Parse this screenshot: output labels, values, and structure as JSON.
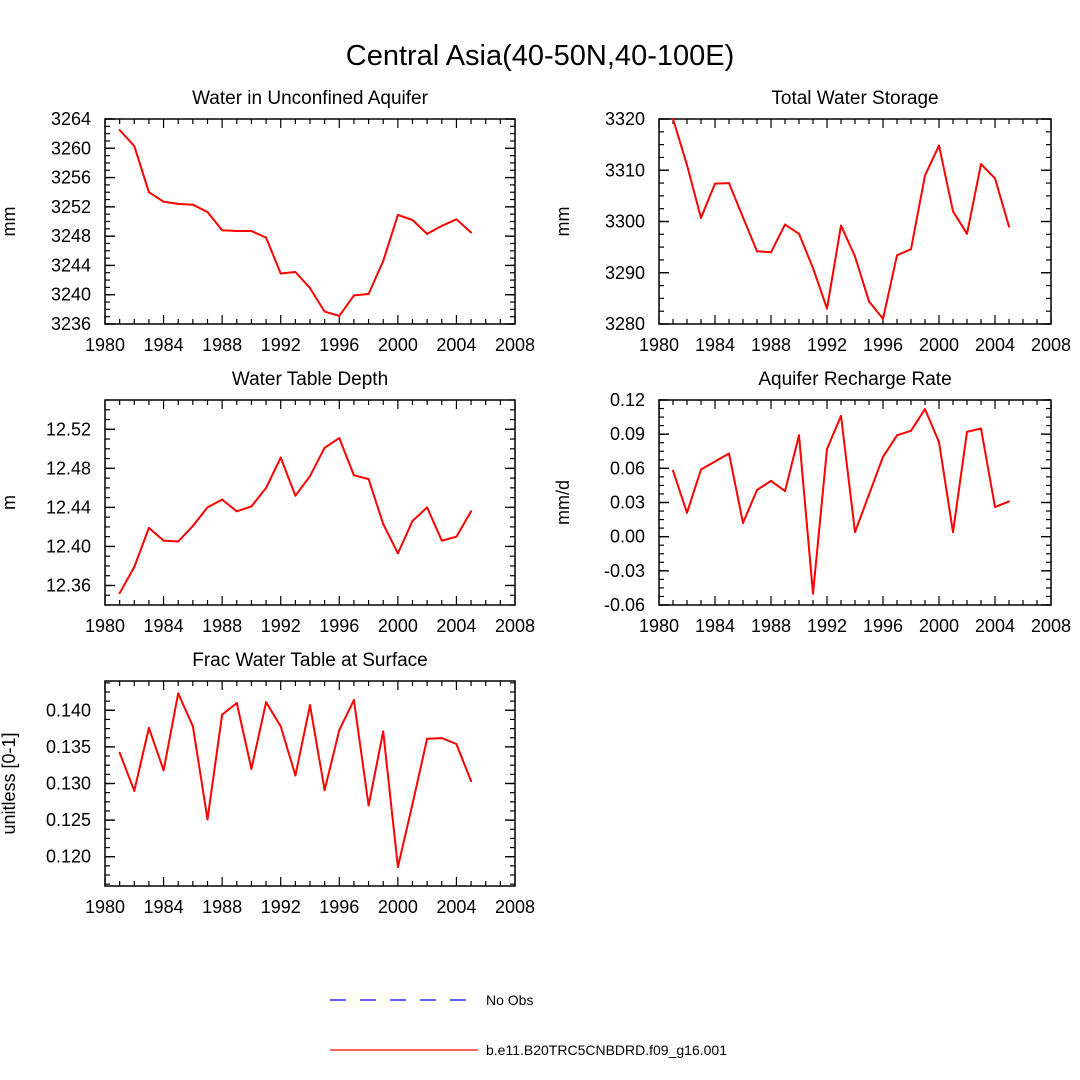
{
  "figure": {
    "title": "Central Asia(40-50N,40-100E)"
  },
  "colors": {
    "series": "#ff0000",
    "no_obs": "#0000ff",
    "axis": "#000000"
  },
  "chart_data": [
    {
      "type": "line",
      "title": "Water in Unconfined Aquifer",
      "ylabel": "mm",
      "xlabel": "",
      "xlim": [
        1980,
        2008
      ],
      "xticks": [
        1980,
        1984,
        1988,
        1992,
        1996,
        2000,
        2004,
        2008
      ],
      "ylim": [
        3236,
        3264
      ],
      "yticks": [
        3236,
        3240,
        3244,
        3248,
        3252,
        3256,
        3260,
        3264
      ],
      "ytick_labels": [
        "3236",
        "3240",
        "3244",
        "3248",
        "3252",
        "3256",
        "3260",
        "3264"
      ],
      "x": [
        1981,
        1982,
        1983,
        1984,
        1985,
        1986,
        1987,
        1988,
        1989,
        1990,
        1991,
        1992,
        1993,
        1994,
        1995,
        1996,
        1997,
        1998,
        1999,
        2000,
        2001,
        2002,
        2003,
        2004,
        2005
      ],
      "series": [
        {
          "name": "b.e11.B20TRC5CNBDRD.f09_g16.001",
          "values": [
            3262.5,
            3260.3,
            3254.0,
            3252.7,
            3252.4,
            3252.3,
            3251.3,
            3248.8,
            3248.7,
            3248.7,
            3247.8,
            3242.9,
            3243.1,
            3240.9,
            3237.7,
            3237.1,
            3239.9,
            3240.1,
            3244.6,
            3250.9,
            3250.2,
            3248.3,
            3249.4,
            3250.3,
            3248.5
          ]
        }
      ]
    },
    {
      "type": "line",
      "title": "Total Water Storage",
      "ylabel": "mm",
      "xlabel": "",
      "xlim": [
        1980,
        2008
      ],
      "xticks": [
        1980,
        1984,
        1988,
        1992,
        1996,
        2000,
        2004,
        2008
      ],
      "ylim": [
        3280,
        3320
      ],
      "yticks": [
        3280,
        3290,
        3300,
        3310,
        3320
      ],
      "ytick_labels": [
        "3280",
        "3290",
        "3300",
        "3310",
        "3320"
      ],
      "x": [
        1981,
        1982,
        1983,
        1984,
        1985,
        1986,
        1987,
        1988,
        1989,
        1990,
        1991,
        1992,
        1993,
        1994,
        1995,
        1996,
        1997,
        1998,
        1999,
        2000,
        2001,
        2002,
        2003,
        2004,
        2005
      ],
      "series": [
        {
          "name": "b.e11.B20TRC5CNBDRD.f09_g16.001",
          "values": [
            3320.0,
            3311.0,
            3300.7,
            3307.4,
            3307.5,
            3300.8,
            3294.2,
            3294.0,
            3299.4,
            3297.6,
            3290.9,
            3283.0,
            3299.2,
            3293.2,
            3284.4,
            3281.0,
            3293.4,
            3294.6,
            3309.0,
            3314.8,
            3302.0,
            3297.6,
            3311.2,
            3308.4,
            3299.0
          ]
        }
      ]
    },
    {
      "type": "line",
      "title": "Water Table Depth",
      "ylabel": "m",
      "xlabel": "",
      "xlim": [
        1980,
        2008
      ],
      "xticks": [
        1980,
        1984,
        1988,
        1992,
        1996,
        2000,
        2004,
        2008
      ],
      "ylim": [
        12.34,
        12.55
      ],
      "yticks": [
        12.36,
        12.4,
        12.44,
        12.48,
        12.52
      ],
      "ytick_labels": [
        "12.36",
        "12.40",
        "12.44",
        "12.48",
        "12.52"
      ],
      "x": [
        1981,
        1982,
        1983,
        1984,
        1985,
        1986,
        1987,
        1988,
        1989,
        1990,
        1991,
        1992,
        1993,
        1994,
        1995,
        1996,
        1997,
        1998,
        1999,
        2000,
        2001,
        2002,
        2003,
        2004,
        2005
      ],
      "series": [
        {
          "name": "b.e11.B20TRC5CNBDRD.f09_g16.001",
          "values": [
            12.352,
            12.379,
            12.419,
            12.406,
            12.405,
            12.421,
            12.44,
            12.448,
            12.436,
            12.441,
            12.46,
            12.491,
            12.452,
            12.472,
            12.501,
            12.511,
            12.473,
            12.469,
            12.423,
            12.393,
            12.426,
            12.44,
            12.406,
            12.41,
            12.436
          ]
        }
      ]
    },
    {
      "type": "line",
      "title": "Aquifer Recharge Rate",
      "ylabel": "mm/d",
      "xlabel": "",
      "xlim": [
        1980,
        2008
      ],
      "xticks": [
        1980,
        1984,
        1988,
        1992,
        1996,
        2000,
        2004,
        2008
      ],
      "ylim": [
        -0.06,
        0.12
      ],
      "yticks": [
        -0.06,
        -0.03,
        0.0,
        0.03,
        0.06,
        0.09,
        0.12
      ],
      "ytick_labels": [
        "-0.06",
        "-0.03",
        "0.00",
        "0.03",
        "0.06",
        "0.09",
        "0.12"
      ],
      "x": [
        1981,
        1982,
        1983,
        1984,
        1985,
        1986,
        1987,
        1988,
        1989,
        1990,
        1991,
        1992,
        1993,
        1994,
        1995,
        1996,
        1997,
        1998,
        1999,
        2000,
        2001,
        2002,
        2003,
        2004,
        2005
      ],
      "series": [
        {
          "name": "b.e11.B20TRC5CNBDRD.f09_g16.001",
          "values": [
            0.058,
            0.021,
            0.059,
            0.066,
            0.073,
            0.012,
            0.041,
            0.049,
            0.04,
            0.089,
            -0.05,
            0.077,
            0.106,
            0.004,
            0.037,
            0.07,
            0.089,
            0.093,
            0.112,
            0.083,
            0.004,
            0.092,
            0.095,
            0.026,
            0.031
          ]
        }
      ]
    },
    {
      "type": "line",
      "title": "Frac Water Table at Surface",
      "ylabel": "unitless [0-1]",
      "xlabel": "",
      "xlim": [
        1980,
        2008
      ],
      "xticks": [
        1980,
        1984,
        1988,
        1992,
        1996,
        2000,
        2004,
        2008
      ],
      "ylim": [
        0.116,
        0.144
      ],
      "yticks": [
        0.12,
        0.125,
        0.13,
        0.135,
        0.14
      ],
      "ytick_labels": [
        "0.120",
        "0.125",
        "0.130",
        "0.135",
        "0.140"
      ],
      "x": [
        1981,
        1982,
        1983,
        1984,
        1985,
        1986,
        1987,
        1988,
        1989,
        1990,
        1991,
        1992,
        1993,
        1994,
        1995,
        1996,
        1997,
        1998,
        1999,
        2000,
        2001,
        2002,
        2003,
        2004,
        2005
      ],
      "series": [
        {
          "name": "b.e11.B20TRC5CNBDRD.f09_g16.001",
          "values": [
            0.1342,
            0.129,
            0.1376,
            0.1318,
            0.1423,
            0.1378,
            0.1251,
            0.1394,
            0.141,
            0.132,
            0.1411,
            0.1378,
            0.1311,
            0.1407,
            0.1291,
            0.1373,
            0.1414,
            0.127,
            0.1371,
            0.1186,
            0.1272,
            0.1361,
            0.1362,
            0.1354,
            0.1303
          ]
        }
      ]
    }
  ],
  "legend": {
    "items": [
      {
        "label": "No Obs",
        "style": "dashed",
        "color": "#0000ff"
      },
      {
        "label": "b.e11.B20TRC5CNBDRD.f09_g16.001",
        "style": "solid",
        "color": "#ff0000"
      }
    ]
  }
}
